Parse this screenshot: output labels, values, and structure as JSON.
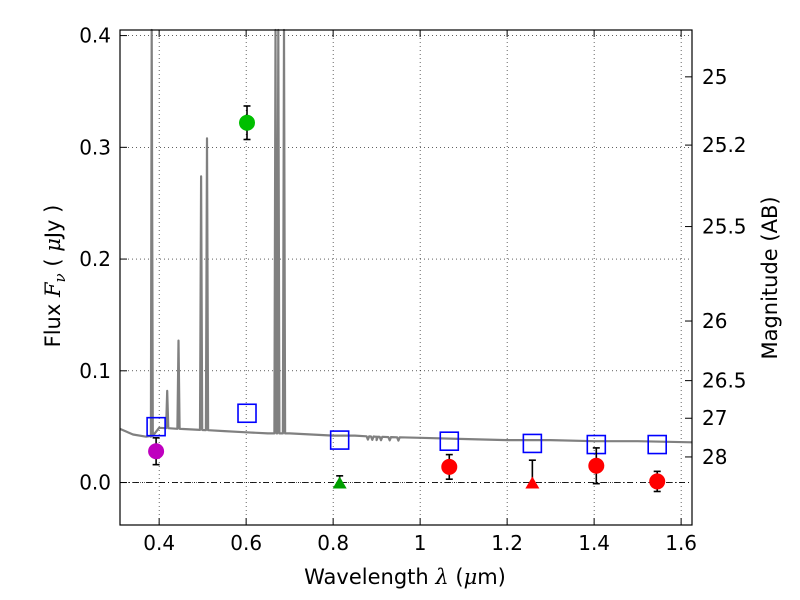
{
  "chart_data": {
    "type": "scatter",
    "xlabel": "Wavelength  λ (μm)",
    "xlabel_parts": {
      "pre": "Wavelength  ",
      "lambda": "λ",
      "open": " (",
      "mu": "μ",
      "post": "m)"
    },
    "ylabel": "Flux  Fν  ( μJy )",
    "ylabel_parts": {
      "pre": "Flux  ",
      "F": "F",
      "sub": "ν",
      "open": "  ( ",
      "mu": "μ",
      "post": "Jy )"
    },
    "y2label": "Magnitude (AB)",
    "xlim": [
      0.31,
      1.625
    ],
    "ylim": [
      -0.038,
      0.405
    ],
    "x_ticks": [
      {
        "v": 0.4,
        "label": "0.4"
      },
      {
        "v": 0.6,
        "label": "0.6"
      },
      {
        "v": 0.8,
        "label": "0.8"
      },
      {
        "v": 1.0,
        "label": "1"
      },
      {
        "v": 1.2,
        "label": "1.2"
      },
      {
        "v": 1.4,
        "label": "1.4"
      },
      {
        "v": 1.6,
        "label": "1.6"
      }
    ],
    "y_ticks": [
      {
        "v": 0.0,
        "label": "0.0"
      },
      {
        "v": 0.1,
        "label": "0.1"
      },
      {
        "v": 0.2,
        "label": "0.2"
      },
      {
        "v": 0.3,
        "label": "0.3"
      },
      {
        "v": 0.4,
        "label": "0.4"
      }
    ],
    "mag_ticks": [
      {
        "mag": 25,
        "label": "25"
      },
      {
        "mag": 25.2,
        "label": "25.2"
      },
      {
        "mag": 25.5,
        "label": "25.5"
      },
      {
        "mag": 26,
        "label": "26"
      },
      {
        "mag": 26.5,
        "label": "26.5"
      },
      {
        "mag": 27,
        "label": "27"
      },
      {
        "mag": 28,
        "label": "28"
      }
    ],
    "grid": true,
    "zero_line": true,
    "detections": [
      {
        "x": 0.393,
        "y": 0.028,
        "err": 0.012,
        "color": "#bf00bf"
      },
      {
        "x": 0.602,
        "y": 0.322,
        "err": 0.015,
        "color": "#00bf00"
      },
      {
        "x": 1.067,
        "y": 0.014,
        "err": 0.011,
        "color": "#ff0000"
      },
      {
        "x": 1.405,
        "y": 0.015,
        "err": 0.016,
        "color": "#ff0000"
      },
      {
        "x": 1.545,
        "y": 0.001,
        "err": 0.009,
        "color": "#ff0000"
      }
    ],
    "upper_limits": [
      {
        "x": 0.815,
        "y": 0.0,
        "err_hi": 0.006,
        "color": "#00a000"
      },
      {
        "x": 1.258,
        "y": 0.0,
        "err_hi": 0.02,
        "color": "#ff0000"
      }
    ],
    "model_photometry": {
      "color": "#0000ff",
      "points": [
        {
          "x": 0.393,
          "y": 0.05
        },
        {
          "x": 0.602,
          "y": 0.062
        },
        {
          "x": 0.815,
          "y": 0.038
        },
        {
          "x": 1.067,
          "y": 0.037
        },
        {
          "x": 1.258,
          "y": 0.035
        },
        {
          "x": 1.405,
          "y": 0.034
        },
        {
          "x": 1.545,
          "y": 0.034
        }
      ]
    },
    "sed_model": {
      "color": "#808080",
      "continuum": [
        [
          0.31,
          0.048
        ],
        [
          0.34,
          0.043
        ],
        [
          0.37,
          0.041
        ],
        [
          0.381,
          0.041
        ],
        [
          0.4,
          0.049
        ],
        [
          0.45,
          0.048
        ],
        [
          0.5,
          0.047
        ],
        [
          0.55,
          0.046
        ],
        [
          0.6,
          0.045
        ],
        [
          0.65,
          0.044
        ],
        [
          0.7,
          0.044
        ],
        [
          0.75,
          0.043
        ],
        [
          0.8,
          0.042
        ],
        [
          0.85,
          0.042
        ],
        [
          0.9,
          0.041
        ],
        [
          1.0,
          0.04
        ],
        [
          1.1,
          0.039
        ],
        [
          1.2,
          0.038
        ],
        [
          1.3,
          0.038
        ],
        [
          1.4,
          0.037
        ],
        [
          1.5,
          0.037
        ],
        [
          1.625,
          0.036
        ]
      ],
      "emission_lines": [
        {
          "x": 0.3828,
          "peak": 0.405
        },
        {
          "x": 0.4185,
          "peak": 0.082
        },
        {
          "x": 0.4445,
          "peak": 0.127
        },
        {
          "x": 0.4965,
          "peak": 0.274
        },
        {
          "x": 0.51,
          "peak": 0.308
        },
        {
          "x": 0.6675,
          "peak": 0.405
        },
        {
          "x": 0.674,
          "peak": 0.405
        },
        {
          "x": 0.687,
          "peak": 0.405
        }
      ],
      "absorption_wiggles": [
        {
          "x": 0.88,
          "depth": 0.003
        },
        {
          "x": 0.89,
          "depth": 0.003
        },
        {
          "x": 0.9,
          "depth": 0.003
        },
        {
          "x": 0.91,
          "depth": 0.003
        },
        {
          "x": 0.93,
          "depth": 0.003
        },
        {
          "x": 0.95,
          "depth": 0.003
        }
      ]
    }
  }
}
